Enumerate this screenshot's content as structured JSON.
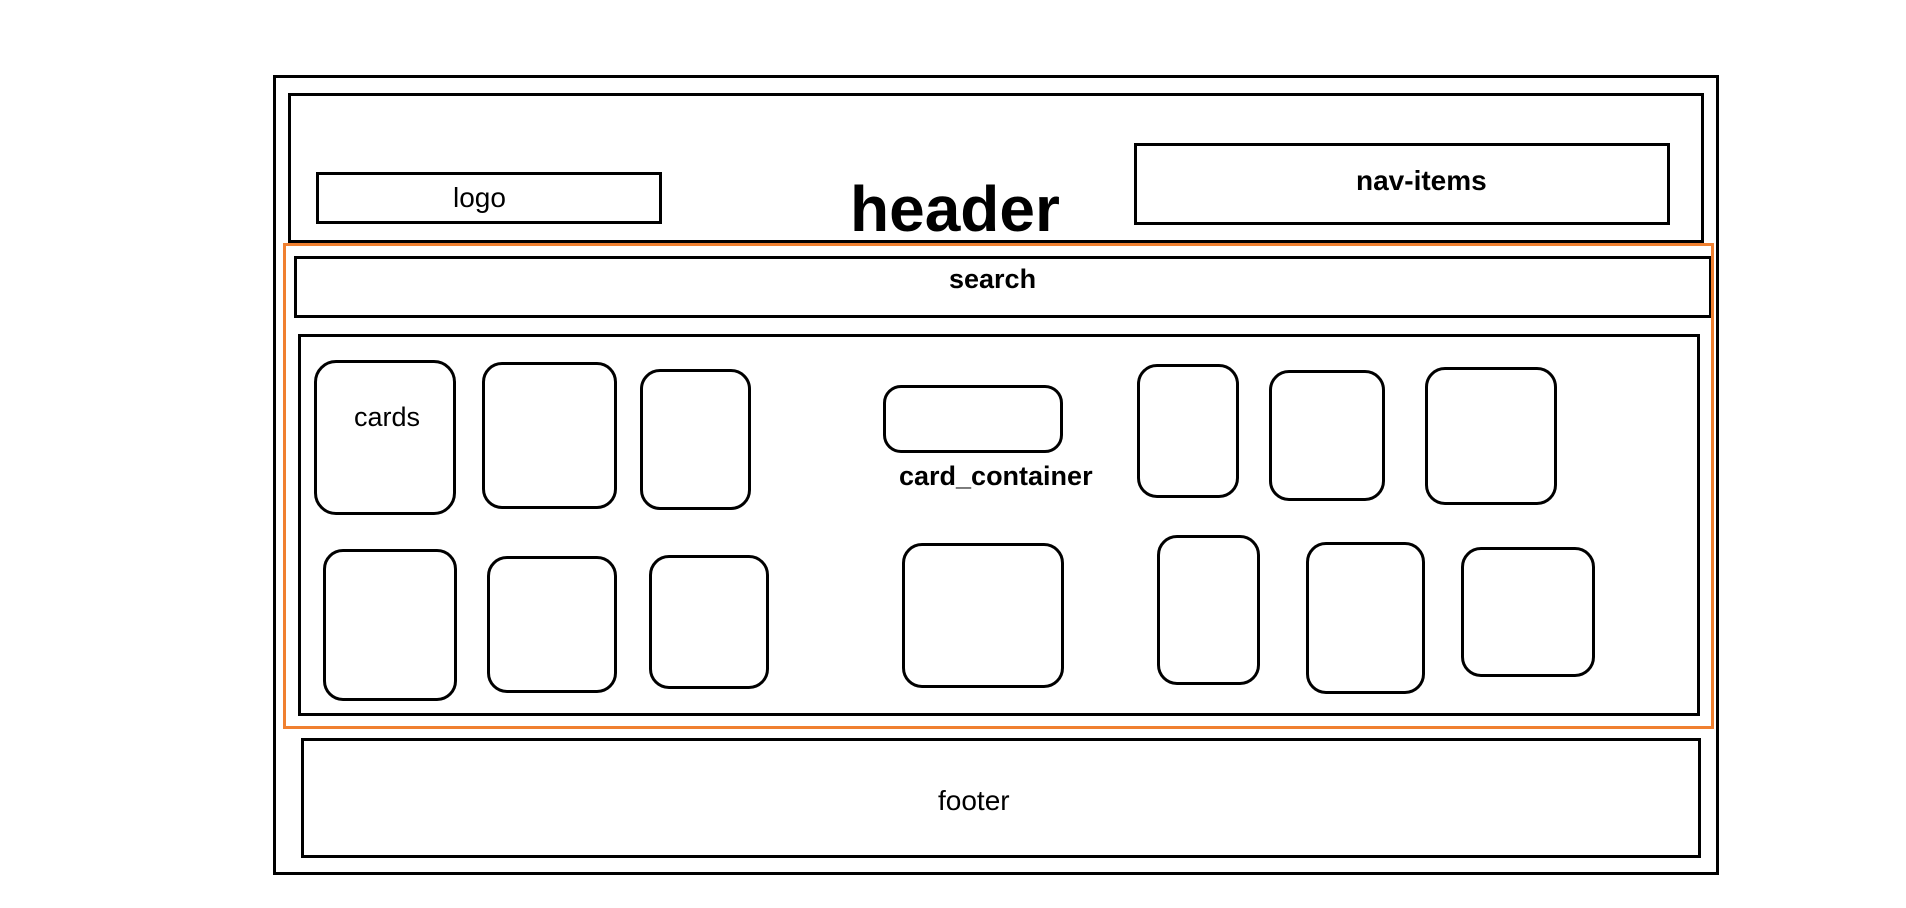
{
  "header": {
    "title": "header",
    "logo_label": "logo",
    "nav_label": "nav-items"
  },
  "search": {
    "label": "search"
  },
  "card_container": {
    "label": "card_container",
    "first_card_label": "cards"
  },
  "footer": {
    "label": "footer"
  },
  "colors": {
    "outline": "#000000",
    "highlight": "#f08030",
    "background": "#ffffff"
  }
}
